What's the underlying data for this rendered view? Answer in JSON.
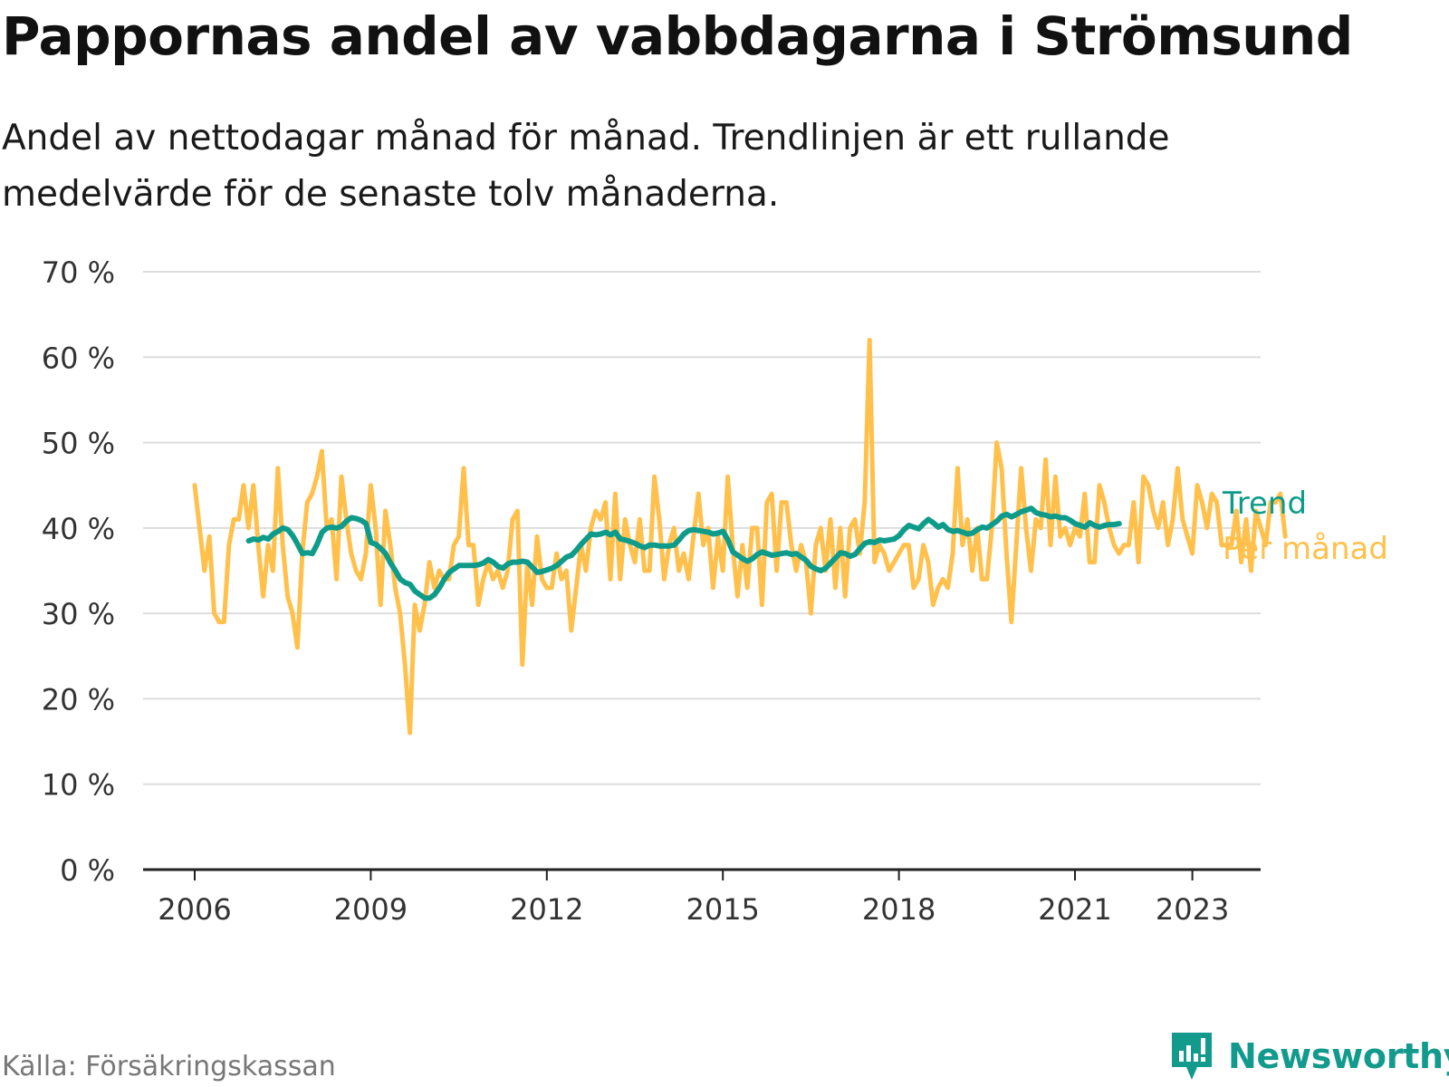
{
  "title": "Pappornas andel av vabbdagarna i Strömsund",
  "subtitle": "Andel av nettodagar månad för månad. Trendlinjen är ett rullande medelvärde för de senaste tolv månaderna.",
  "source": "Källa: Försäkringskassan",
  "brand": "Newsworthy",
  "colors": {
    "monthly": "#ffc04c",
    "trend": "#0e9b8a",
    "grid": "#dddddd",
    "axis": "#222222",
    "tick_text": "#333333"
  },
  "chart_data": {
    "type": "line",
    "title": "Pappornas andel av vabbdagarna i Strömsund",
    "xlabel": "",
    "ylabel": "",
    "ylim": [
      0,
      70
    ],
    "xlim": [
      2005.9,
      2024.2
    ],
    "y_ticks": [
      0,
      10,
      20,
      30,
      40,
      50,
      60,
      70
    ],
    "y_tick_labels": [
      "0 %",
      "10 %",
      "20 %",
      "30 %",
      "40 %",
      "50 %",
      "60 %",
      "70 %"
    ],
    "x_ticks": [
      2006,
      2009,
      2012,
      2015,
      2018,
      2021,
      2023
    ],
    "x_tick_labels": [
      "2006",
      "2009",
      "2012",
      "2015",
      "2018",
      "2021",
      "2023"
    ],
    "grid": true,
    "series": [
      {
        "name": "Per månad",
        "label": "Per månad",
        "start": 2006.0,
        "step": 0.0833333,
        "values": [
          45,
          40,
          35,
          39,
          30,
          29,
          29,
          38,
          41,
          41,
          45,
          40,
          45,
          38,
          32,
          38,
          35,
          47,
          38,
          32,
          30,
          26,
          37,
          43,
          44,
          46,
          49,
          40,
          41,
          34,
          46,
          41,
          37,
          35,
          34,
          37,
          45,
          40,
          31,
          42,
          38,
          33,
          30,
          24,
          16,
          31,
          28,
          31,
          36,
          33,
          35,
          34,
          34,
          38,
          39,
          47,
          38,
          38,
          31,
          34,
          36,
          34,
          35,
          33,
          35,
          41,
          42,
          24,
          36,
          31,
          39,
          34,
          33,
          33,
          37,
          34,
          35,
          28,
          33,
          38,
          35,
          40,
          42,
          41,
          43,
          34,
          44,
          34,
          41,
          38,
          36,
          41,
          35,
          35,
          46,
          41,
          34,
          38,
          40,
          35,
          37,
          34,
          39,
          44,
          38,
          40,
          33,
          39,
          35,
          46,
          38,
          32,
          38,
          33,
          40,
          40,
          31,
          43,
          44,
          35,
          43,
          43,
          38,
          35,
          38,
          36,
          30,
          38,
          40,
          35,
          41,
          33,
          40,
          32,
          40,
          41,
          37,
          43,
          62,
          36,
          38,
          37,
          35,
          36,
          37,
          38,
          38,
          33,
          34,
          38,
          36,
          31,
          33,
          34,
          33,
          37,
          47,
          38,
          41,
          35,
          40,
          34,
          34,
          40,
          50,
          47,
          37,
          29,
          38,
          47,
          40,
          35,
          41,
          40,
          48,
          38,
          46,
          39,
          40,
          38,
          40,
          39,
          44,
          36,
          36,
          45,
          43,
          40,
          38,
          37,
          38,
          38,
          43,
          36,
          46,
          45,
          42,
          40,
          43,
          38,
          41,
          47,
          41,
          39,
          37,
          45,
          43,
          40,
          44,
          43,
          38,
          38,
          38,
          42,
          36,
          41,
          35,
          42,
          40,
          38,
          43,
          43,
          44,
          39
        ],
        "color": "#ffc04c"
      },
      {
        "name": "Trend",
        "label": "Trend",
        "start": 2006.92,
        "step": 0.0833333,
        "values": [
          38.5,
          38.7,
          38.6,
          38.9,
          38.7,
          39.3,
          39.6,
          40.0,
          39.8,
          39.1,
          38.1,
          37.0,
          37.1,
          37.0,
          38.1,
          39.5,
          40.0,
          40.1,
          40.0,
          40.2,
          40.8,
          41.2,
          41.1,
          40.9,
          40.5,
          38.3,
          38.1,
          37.6,
          37.0,
          35.9,
          35.0,
          34.0,
          33.6,
          33.4,
          32.6,
          32.2,
          31.8,
          31.8,
          32.2,
          33.0,
          34.0,
          34.8,
          35.2,
          35.6,
          35.6,
          35.6,
          35.6,
          35.7,
          35.9,
          36.3,
          36.0,
          35.5,
          35.3,
          35.8,
          36.0,
          36.0,
          36.1,
          36.0,
          35.4,
          34.8,
          34.9,
          35.1,
          35.3,
          35.6,
          36.1,
          36.6,
          36.8,
          37.4,
          38.1,
          38.7,
          39.3,
          39.2,
          39.3,
          39.5,
          39.2,
          39.5,
          38.7,
          38.6,
          38.4,
          38.2,
          37.9,
          37.7,
          38.0,
          38.0,
          37.9,
          37.9,
          37.9,
          38.0,
          38.6,
          39.3,
          39.7,
          39.8,
          39.7,
          39.6,
          39.5,
          39.3,
          39.4,
          39.6,
          38.6,
          37.2,
          36.8,
          36.4,
          36.1,
          36.4,
          36.9,
          37.2,
          37.0,
          36.8,
          36.9,
          37.0,
          37.1,
          36.9,
          37.0,
          36.6,
          36.2,
          35.5,
          35.2,
          35.0,
          35.3,
          35.9,
          36.5,
          37.1,
          37.0,
          36.7,
          36.9,
          37.6,
          38.2,
          38.4,
          38.3,
          38.6,
          38.5,
          38.6,
          38.7,
          39.1,
          39.8,
          40.3,
          40.1,
          39.9,
          40.5,
          41.0,
          40.6,
          40.1,
          40.4,
          39.8,
          39.6,
          39.7,
          39.5,
          39.3,
          39.4,
          39.8,
          40.1,
          40.0,
          40.4,
          40.8,
          41.4,
          41.6,
          41.3,
          41.6,
          41.9,
          42.1,
          42.3,
          41.8,
          41.6,
          41.5,
          41.3,
          41.4,
          41.2,
          41.2,
          40.9,
          40.5,
          40.3,
          40.1,
          40.6,
          40.3,
          40.1,
          40.3,
          40.4,
          40.4,
          40.5
        ],
        "color": "#0e9b8a"
      }
    ]
  }
}
